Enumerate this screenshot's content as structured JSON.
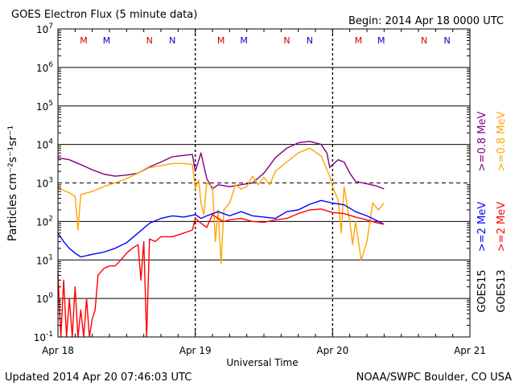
{
  "header": {
    "title": "GOES Electron Flux (5 minute data)",
    "begin": "Begin: 2014 Apr 18 0000 UTC"
  },
  "footer": {
    "updated": "Updated 2014 Apr 20 07:46:03 UTC",
    "credit": "NOAA/SWPC Boulder, CO USA"
  },
  "chart_data": {
    "type": "line",
    "title": "GOES Electron Flux (5 minute data)",
    "xlabel": "Universal Time",
    "ylabel": "Particles cm⁻²s⁻¹sr⁻¹",
    "yscale": "log",
    "ylim": [
      0.1,
      10000000
    ],
    "xlim": [
      0,
      72
    ],
    "x_unit": "hours since 2014 Apr 18 0000 UTC",
    "x_ticks": [
      {
        "x": 0,
        "label": "Apr 18"
      },
      {
        "x": 24,
        "label": "Apr 19"
      },
      {
        "x": 48,
        "label": "Apr 20"
      },
      {
        "x": 72,
        "label": "Apr 21"
      }
    ],
    "y_ticks": [
      {
        "v": 0.1,
        "m": "10",
        "e": "-1"
      },
      {
        "v": 1,
        "m": "10",
        "e": "0"
      },
      {
        "v": 10,
        "m": "10",
        "e": "1"
      },
      {
        "v": 100,
        "m": "10",
        "e": "2"
      },
      {
        "v": 1000,
        "m": "10",
        "e": "3"
      },
      {
        "v": 10000,
        "m": "10",
        "e": "4"
      },
      {
        "v": 100000,
        "m": "10",
        "e": "5"
      },
      {
        "v": 1000000,
        "m": "10",
        "e": "6"
      },
      {
        "v": 10000000,
        "m": "10",
        "e": "7"
      }
    ],
    "threshold": 1000,
    "grid": true,
    "legend_placement": "right, rotated",
    "legend": {
      "satellites": [
        {
          "label": "GOES15",
          "color": "#000000"
        },
        {
          "label": "GOES13",
          "color": "#000000"
        }
      ],
      "entries": [
        {
          "label": ">=0.8 MeV",
          "color": "#800080"
        },
        {
          "label": ">=0.8 MeV",
          "color": "#ffa500"
        },
        {
          "label": ">=2 MeV",
          "color": "#0000ff"
        },
        {
          "label": ">=2 MeV",
          "color": "#ff0000"
        }
      ]
    },
    "markers": [
      {
        "x": 4.5,
        "label": "M",
        "color": "#cc0000"
      },
      {
        "x": 8.5,
        "label": "M",
        "color": "#0000cc"
      },
      {
        "x": 16,
        "label": "N",
        "color": "#cc0000"
      },
      {
        "x": 20,
        "label": "N",
        "color": "#0000cc"
      },
      {
        "x": 28.5,
        "label": "M",
        "color": "#cc0000"
      },
      {
        "x": 32.5,
        "label": "M",
        "color": "#0000cc"
      },
      {
        "x": 40,
        "label": "N",
        "color": "#cc0000"
      },
      {
        "x": 44,
        "label": "N",
        "color": "#0000cc"
      },
      {
        "x": 52.5,
        "label": "M",
        "color": "#cc0000"
      },
      {
        "x": 56.5,
        "label": "M",
        "color": "#0000cc"
      },
      {
        "x": 64,
        "label": "N",
        "color": "#cc0000"
      },
      {
        "x": 68,
        "label": "N",
        "color": "#0000cc"
      }
    ],
    "series": [
      {
        "name": "GOES15 >=0.8 MeV",
        "color": "#800080",
        "points": [
          [
            0,
            4500
          ],
          [
            2,
            4000
          ],
          [
            4,
            3000
          ],
          [
            6,
            2200
          ],
          [
            8,
            1700
          ],
          [
            10,
            1500
          ],
          [
            12,
            1600
          ],
          [
            14,
            1800
          ],
          [
            16,
            2600
          ],
          [
            18,
            3500
          ],
          [
            20,
            4800
          ],
          [
            22,
            5200
          ],
          [
            23.5,
            5500
          ],
          [
            24,
            2000
          ],
          [
            25,
            6000
          ],
          [
            26,
            1300
          ],
          [
            27,
            700
          ],
          [
            28,
            900
          ],
          [
            30,
            800
          ],
          [
            32,
            900
          ],
          [
            34,
            1000
          ],
          [
            36,
            1800
          ],
          [
            38,
            4500
          ],
          [
            40,
            8000
          ],
          [
            42,
            11000
          ],
          [
            44,
            12000
          ],
          [
            46,
            10000
          ],
          [
            47,
            6000
          ],
          [
            47.5,
            2500
          ],
          [
            48,
            3000
          ],
          [
            49,
            4000
          ],
          [
            50,
            3500
          ],
          [
            51,
            1800
          ],
          [
            52,
            1100
          ],
          [
            54,
            950
          ],
          [
            55.5,
            850
          ],
          [
            56,
            800
          ],
          [
            57,
            700
          ]
        ]
      },
      {
        "name": "GOES13 >=0.8 MeV",
        "color": "#ffa500",
        "points": [
          [
            0,
            750
          ],
          [
            2,
            550
          ],
          [
            3,
            450
          ],
          [
            3.5,
            60
          ],
          [
            4,
            500
          ],
          [
            6,
            600
          ],
          [
            8,
            800
          ],
          [
            10,
            1000
          ],
          [
            12,
            1300
          ],
          [
            14,
            1800
          ],
          [
            16,
            2500
          ],
          [
            18,
            2800
          ],
          [
            20,
            3200
          ],
          [
            22,
            3200
          ],
          [
            23.5,
            3000
          ],
          [
            24,
            700
          ],
          [
            24.6,
            1200
          ],
          [
            25,
            300
          ],
          [
            25.5,
            150
          ],
          [
            26,
            1000
          ],
          [
            27,
            800
          ],
          [
            27.5,
            30
          ],
          [
            28,
            200
          ],
          [
            28.5,
            8
          ],
          [
            29,
            200
          ],
          [
            30,
            300
          ],
          [
            30.5,
            500
          ],
          [
            31,
            900
          ],
          [
            32,
            700
          ],
          [
            33,
            800
          ],
          [
            34,
            1500
          ],
          [
            35,
            900
          ],
          [
            36,
            1400
          ],
          [
            37,
            900
          ],
          [
            38,
            2000
          ],
          [
            40,
            3500
          ],
          [
            42,
            6000
          ],
          [
            44,
            8000
          ],
          [
            46,
            5000
          ],
          [
            47.5,
            1500
          ],
          [
            48,
            800
          ],
          [
            49,
            350
          ],
          [
            49.5,
            50
          ],
          [
            50,
            800
          ],
          [
            51,
            100
          ],
          [
            51.5,
            25
          ],
          [
            52,
            100
          ],
          [
            53,
            10
          ],
          [
            54,
            30
          ],
          [
            55,
            300
          ],
          [
            56,
            200
          ],
          [
            57,
            300
          ]
        ]
      },
      {
        "name": "GOES15 >=2 MeV",
        "color": "#0000ff",
        "points": [
          [
            0,
            50
          ],
          [
            1,
            30
          ],
          [
            2,
            20
          ],
          [
            3,
            15
          ],
          [
            4,
            12
          ],
          [
            6,
            14
          ],
          [
            8,
            16
          ],
          [
            10,
            20
          ],
          [
            12,
            28
          ],
          [
            14,
            50
          ],
          [
            16,
            90
          ],
          [
            18,
            120
          ],
          [
            20,
            140
          ],
          [
            22,
            130
          ],
          [
            24,
            150
          ],
          [
            25,
            120
          ],
          [
            26,
            140
          ],
          [
            28,
            180
          ],
          [
            30,
            140
          ],
          [
            32,
            180
          ],
          [
            34,
            140
          ],
          [
            36,
            130
          ],
          [
            38,
            120
          ],
          [
            40,
            180
          ],
          [
            42,
            200
          ],
          [
            44,
            280
          ],
          [
            46,
            350
          ],
          [
            48,
            300
          ],
          [
            50,
            270
          ],
          [
            52,
            180
          ],
          [
            54,
            140
          ],
          [
            56,
            100
          ],
          [
            57,
            85
          ]
        ]
      },
      {
        "name": "GOES13 >=2 MeV",
        "color": "#ff0000",
        "points": [
          [
            0,
            5
          ],
          [
            0.5,
            0.1
          ],
          [
            1,
            3
          ],
          [
            1.5,
            0.1
          ],
          [
            2,
            1
          ],
          [
            2.5,
            0.1
          ],
          [
            3,
            2
          ],
          [
            3.5,
            0.1
          ],
          [
            4,
            0.5
          ],
          [
            4.5,
            0.1
          ],
          [
            5,
            1
          ],
          [
            5.5,
            0.1
          ],
          [
            6,
            0.3
          ],
          [
            6.5,
            0.5
          ],
          [
            7,
            4
          ],
          [
            8,
            6
          ],
          [
            9,
            7
          ],
          [
            10,
            7
          ],
          [
            11,
            10
          ],
          [
            12,
            15
          ],
          [
            13,
            20
          ],
          [
            14,
            25
          ],
          [
            14.5,
            3
          ],
          [
            15,
            30
          ],
          [
            15.5,
            0.1
          ],
          [
            16,
            35
          ],
          [
            17,
            30
          ],
          [
            18,
            40
          ],
          [
            20,
            40
          ],
          [
            22,
            50
          ],
          [
            23.5,
            60
          ],
          [
            24,
            120
          ],
          [
            25,
            90
          ],
          [
            26,
            70
          ],
          [
            27,
            150
          ],
          [
            28,
            120
          ],
          [
            29,
            100
          ],
          [
            30,
            110
          ],
          [
            32,
            120
          ],
          [
            34,
            100
          ],
          [
            36,
            95
          ],
          [
            38,
            110
          ],
          [
            40,
            120
          ],
          [
            42,
            160
          ],
          [
            44,
            200
          ],
          [
            46,
            210
          ],
          [
            48,
            170
          ],
          [
            50,
            160
          ],
          [
            52,
            130
          ],
          [
            54,
            110
          ],
          [
            56,
            90
          ],
          [
            57,
            85
          ]
        ]
      }
    ]
  }
}
